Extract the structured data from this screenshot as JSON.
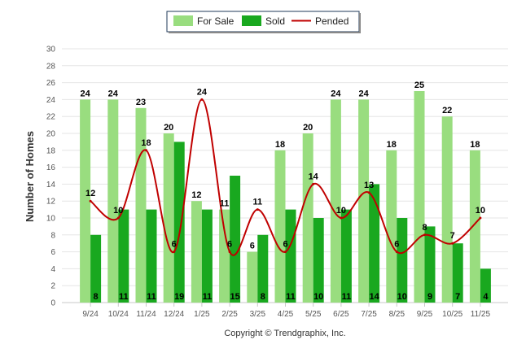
{
  "chart_data": {
    "type": "bar",
    "title": "",
    "xlabel": "",
    "ylabel": "Number of Homes",
    "ylim": [
      0,
      30
    ],
    "ytick_step": 2,
    "grid": true,
    "legend_position": "top-center",
    "categories": [
      "9/24",
      "10/24",
      "11/24",
      "12/24",
      "1/25",
      "2/25",
      "3/25",
      "4/25",
      "5/25",
      "6/25",
      "7/25",
      "8/25",
      "9/25",
      "10/25",
      "11/25"
    ],
    "series": [
      {
        "name": "For Sale",
        "kind": "bar",
        "color": "#99DD7F",
        "values": [
          24,
          24,
          23,
          20,
          12,
          11,
          6,
          18,
          20,
          24,
          24,
          18,
          25,
          22,
          18
        ]
      },
      {
        "name": "Sold",
        "kind": "bar",
        "color": "#19A81F",
        "values": [
          8,
          11,
          11,
          19,
          11,
          15,
          8,
          11,
          10,
          11,
          14,
          10,
          9,
          7,
          4
        ]
      },
      {
        "name": "Pended",
        "kind": "line",
        "color": "#C00000",
        "values": [
          12,
          10,
          18,
          6,
          24,
          6,
          11,
          6,
          14,
          10,
          13,
          6,
          8,
          7,
          10
        ]
      }
    ],
    "copyright": "Copyright © Trendgraphix, Inc."
  }
}
